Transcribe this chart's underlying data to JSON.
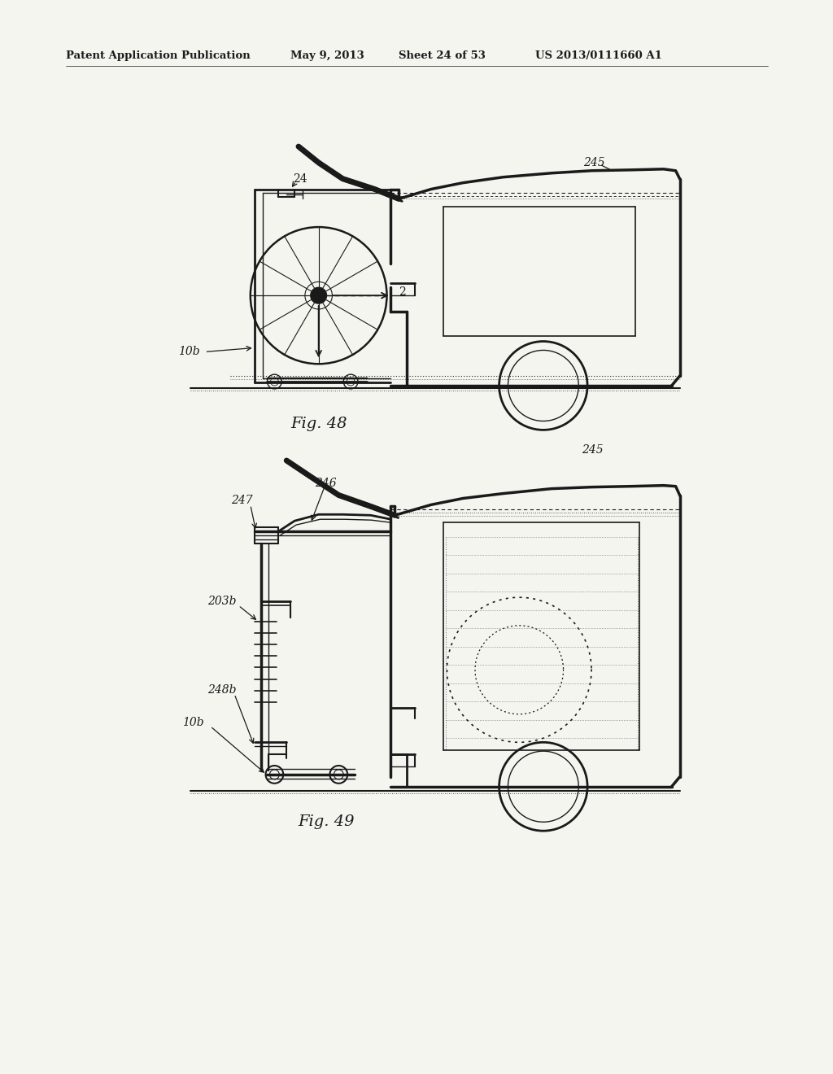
{
  "bg_color": "#f5f5f0",
  "header_text1": "Patent Application Publication",
  "header_text2": "May 9, 2013",
  "header_text3": "Sheet 24 of 53",
  "header_text4": "US 2013/0111660 A1",
  "fig48_label": "Fig. 48",
  "fig49_label": "Fig. 49",
  "line_color": "#1a1a1a"
}
